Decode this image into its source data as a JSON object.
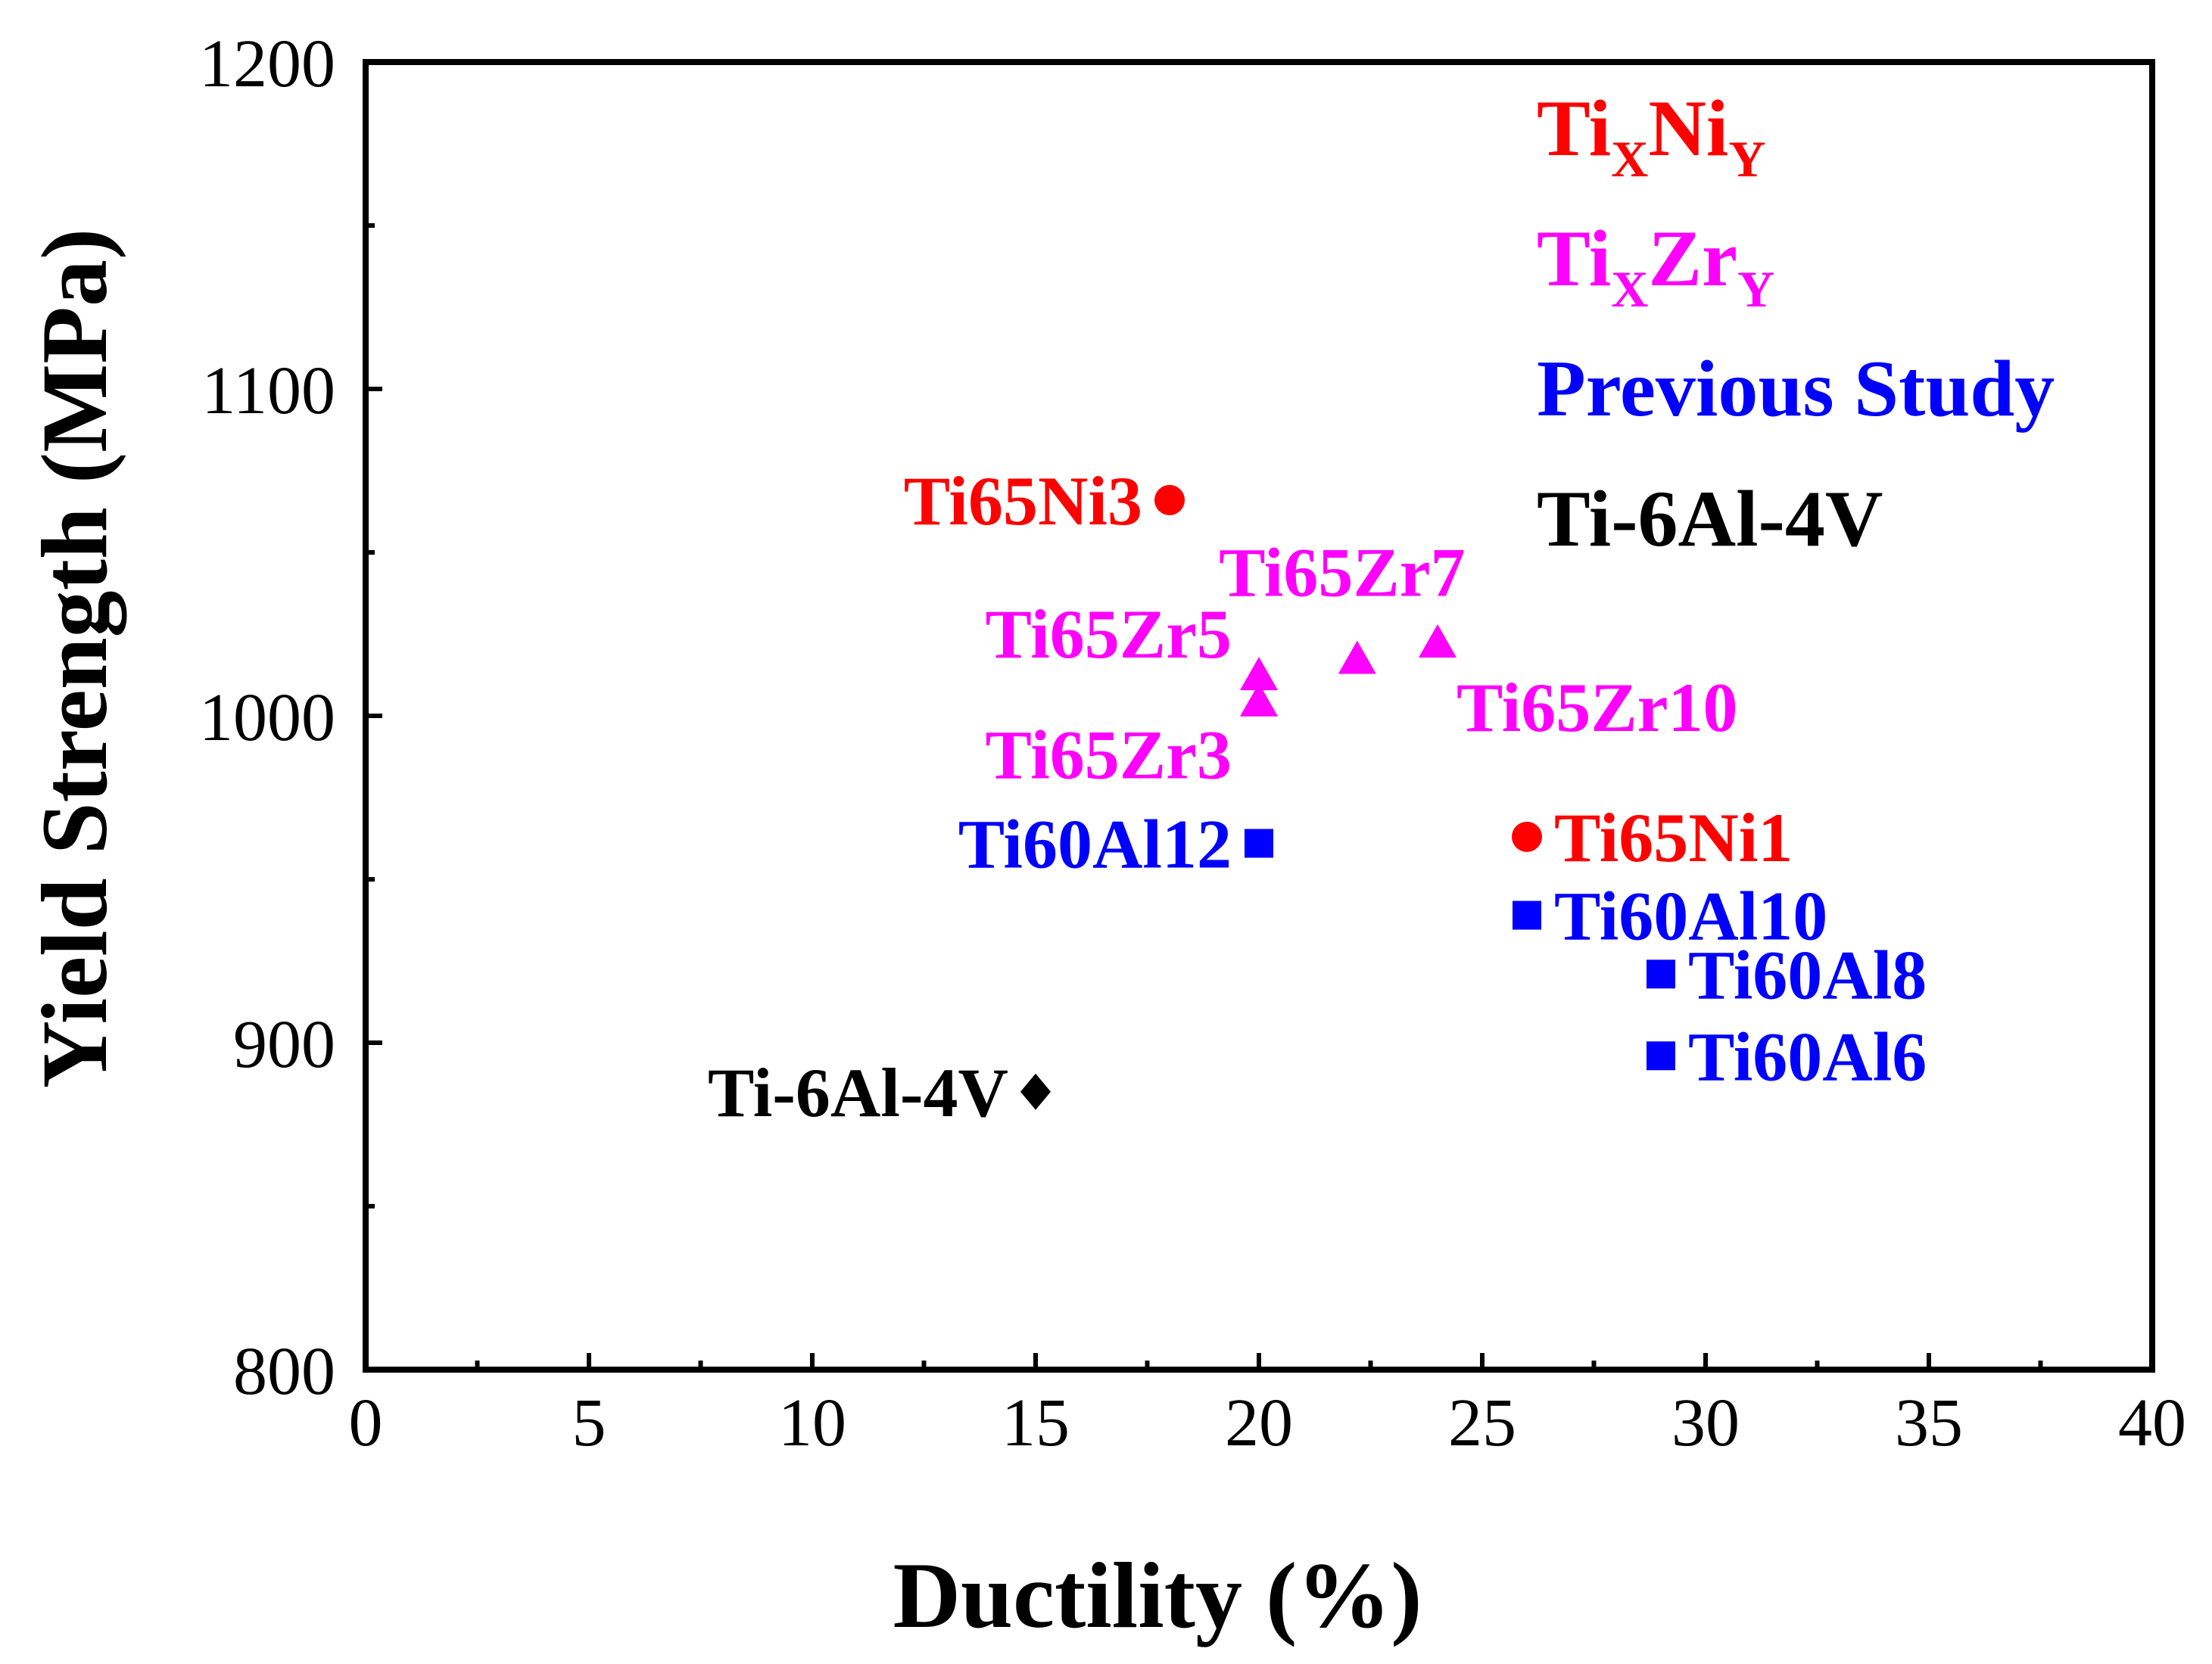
{
  "chart_data": {
    "type": "scatter",
    "title": "",
    "xlabel": "Ductility (%)",
    "ylabel": "Yield Strength (MPa)",
    "xlim": [
      0,
      40
    ],
    "ylim": [
      800,
      1200
    ],
    "x_ticks": [
      "0",
      "5",
      "10",
      "15",
      "20",
      "25",
      "30",
      "35",
      "40"
    ],
    "y_ticks": [
      "800",
      "900",
      "1000",
      "1100",
      "1200"
    ],
    "legend_position": "top-right",
    "legend": [
      {
        "name": "Ti",
        "sub1": "X",
        "mid": "Ni",
        "sub2": "Y",
        "color": "#ff0000"
      },
      {
        "name": "Ti",
        "sub1": "X",
        "mid": "Zr",
        "sub2": "Y",
        "color": "#ff00ff"
      },
      {
        "name": "Previous Study",
        "sub1": "",
        "mid": "",
        "sub2": "",
        "color": "#0000ff"
      },
      {
        "name": "Ti-6Al-4V",
        "sub1": "",
        "mid": "",
        "sub2": "",
        "color": "#000000"
      }
    ],
    "series": [
      {
        "name": "TiXNiY",
        "marker": "circle",
        "color": "#ff0000",
        "points": [
          {
            "label": "Ti65Ni3",
            "x": 18,
            "y": 1066,
            "label_side": "left"
          },
          {
            "label": "Ti65Ni1",
            "x": 26,
            "y": 963,
            "label_side": "right"
          }
        ]
      },
      {
        "name": "TiXZrY",
        "marker": "triangle",
        "color": "#ff00ff",
        "points": [
          {
            "label": "Ti65Zr3",
            "x": 20,
            "y": 1004,
            "label_side": "below-left"
          },
          {
            "label": "Ti65Zr5",
            "x": 20,
            "y": 1012,
            "label_side": "above-left"
          },
          {
            "label": "Ti65Zr7",
            "x": 22.2,
            "y": 1017,
            "label_side": "above"
          },
          {
            "label": "Ti65Zr10",
            "x": 24,
            "y": 1022,
            "label_side": "below-right"
          }
        ]
      },
      {
        "name": "Previous Study",
        "marker": "square",
        "color": "#0000ff",
        "points": [
          {
            "label": "Ti60Al12",
            "x": 20,
            "y": 961,
            "label_side": "left"
          },
          {
            "label": "Ti60Al10",
            "x": 26,
            "y": 939,
            "label_side": "right"
          },
          {
            "label": "Ti60Al8",
            "x": 29,
            "y": 921,
            "label_side": "right"
          },
          {
            "label": "Ti60Al6",
            "x": 29,
            "y": 896,
            "label_side": "right"
          }
        ]
      },
      {
        "name": "Ti-6Al-4V",
        "marker": "diamond",
        "color": "#000000",
        "points": [
          {
            "label": "Ti-6Al-4V",
            "x": 15,
            "y": 885,
            "label_side": "left"
          }
        ]
      }
    ]
  }
}
